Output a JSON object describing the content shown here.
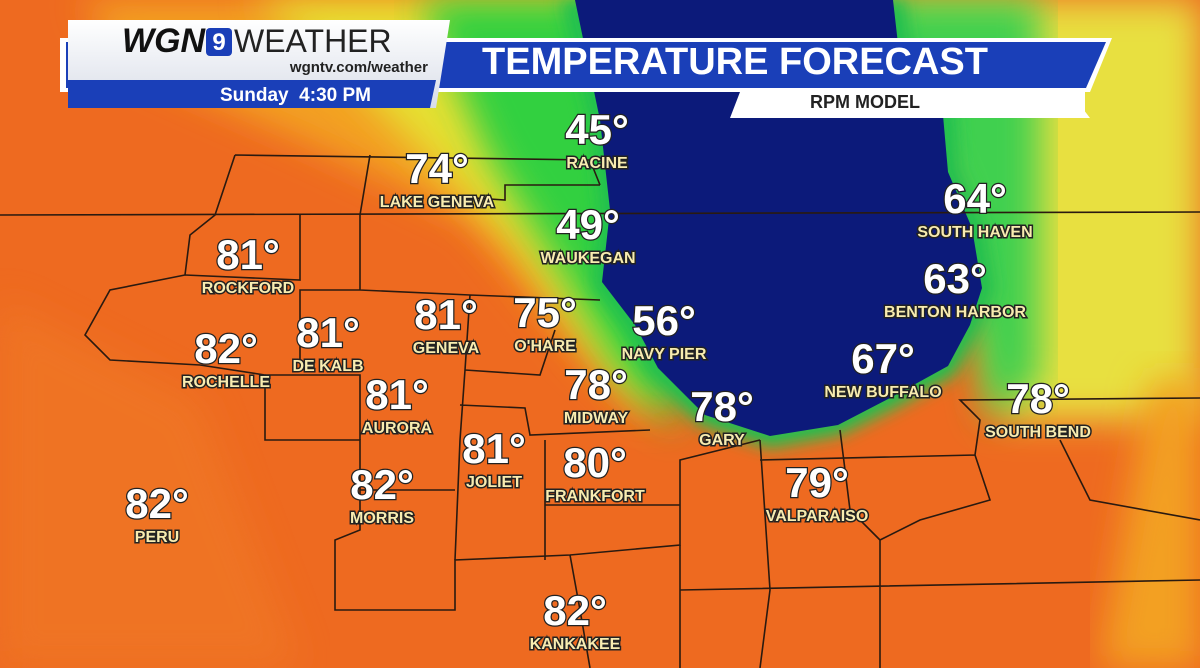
{
  "header": {
    "logo_wgn": "WGN",
    "logo_channel": "9",
    "logo_weather": "WEATHER",
    "url": "wgntv.com/weather",
    "time": "Sunday  4:30 PM",
    "title": "TEMPERATURE FORECAST",
    "subtitle": "RPM MODEL"
  },
  "cities": [
    {
      "temp": "74°",
      "name": "LAKE GENEVA"
    },
    {
      "temp": "45°",
      "name": "RACINE"
    },
    {
      "temp": "49°",
      "name": "WAUKEGAN"
    },
    {
      "temp": "64°",
      "name": "SOUTH HAVEN"
    },
    {
      "temp": "81°",
      "name": "ROCKFORD"
    },
    {
      "temp": "63°",
      "name": "BENTON HARBOR"
    },
    {
      "temp": "81°",
      "name": "GENEVA"
    },
    {
      "temp": "75°",
      "name": "O'HARE"
    },
    {
      "temp": "56°",
      "name": "NAVY PIER"
    },
    {
      "temp": "81°",
      "name": "DE KALB"
    },
    {
      "temp": "82°",
      "name": "ROCHELLE"
    },
    {
      "temp": "67°",
      "name": "NEW BUFFALO"
    },
    {
      "temp": "81°",
      "name": "AURORA"
    },
    {
      "temp": "78°",
      "name": "MIDWAY"
    },
    {
      "temp": "78°",
      "name": "GARY"
    },
    {
      "temp": "78°",
      "name": "SOUTH BEND"
    },
    {
      "temp": "81°",
      "name": "JOLIET"
    },
    {
      "temp": "80°",
      "name": "FRANKFORT"
    },
    {
      "temp": "82°",
      "name": "MORRIS"
    },
    {
      "temp": "79°",
      "name": "VALPARAISO"
    },
    {
      "temp": "82°",
      "name": "PERU"
    },
    {
      "temp": "82°",
      "name": "KANKAKEE"
    }
  ]
}
